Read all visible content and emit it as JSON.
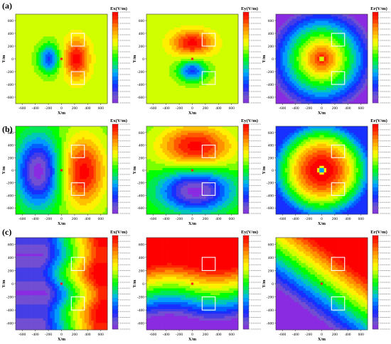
{
  "figure": {
    "row_labels": [
      "(a)",
      "(b)",
      "(c)"
    ]
  },
  "chart_data": [
    {
      "type": "heatmap",
      "row": "(a)",
      "col": 0,
      "field": "Ex",
      "cbar_title": "Ex(V/m)",
      "xlabel": "X/m",
      "ylabel": "Y/m",
      "xlim": [
        -700,
        700
      ],
      "ylim": [
        -700,
        700
      ],
      "xticks": [
        -600,
        -400,
        -200,
        0,
        200,
        400,
        600
      ],
      "yticks": [
        600,
        400,
        200,
        0,
        -200,
        -400,
        -600
      ],
      "source_point": {
        "x": 0,
        "y": 0,
        "color": "#ff2020"
      },
      "boxes": [
        {
          "x0": 150,
          "x1": 350,
          "y0": 200,
          "y1": 400
        },
        {
          "x0": 150,
          "x1": 350,
          "y0": -400,
          "y1": -200
        }
      ]
    },
    {
      "type": "heatmap",
      "row": "(a)",
      "col": 1,
      "field": "Ey",
      "cbar_title": "Ey(V/m)",
      "xlabel": "X/m",
      "ylabel": "Y/m",
      "xlim": [
        -700,
        700
      ],
      "ylim": [
        -700,
        700
      ],
      "xticks": [
        -600,
        -400,
        -200,
        0,
        200,
        400,
        600
      ],
      "yticks": [
        600,
        400,
        200,
        0,
        -200,
        -400,
        -600
      ],
      "source_point": {
        "x": 0,
        "y": 0,
        "color": "#ff2020"
      },
      "boxes": [
        {
          "x0": 150,
          "x1": 350,
          "y0": 200,
          "y1": 400
        },
        {
          "x0": 150,
          "x1": 350,
          "y0": -400,
          "y1": -200
        }
      ]
    },
    {
      "type": "heatmap",
      "row": "(a)",
      "col": 2,
      "field": "Er",
      "cbar_title": "Er(V/m)",
      "xlabel": "X/m",
      "ylabel": "Y/m",
      "xlim": [
        -700,
        700
      ],
      "ylim": [
        -700,
        700
      ],
      "xticks": [
        -600,
        -400,
        -200,
        0,
        200,
        400,
        600
      ],
      "yticks": [
        600,
        400,
        200,
        0,
        -200,
        -400,
        -600
      ],
      "source_point": null,
      "boxes": [
        {
          "x0": 150,
          "x1": 350,
          "y0": 200,
          "y1": 400
        },
        {
          "x0": 150,
          "x1": 350,
          "y0": -400,
          "y1": -200
        }
      ]
    },
    {
      "type": "heatmap",
      "row": "(b)",
      "col": 0,
      "field": "Ex",
      "cbar_title": "Ex(V/m)",
      "xlabel": "X/m",
      "ylabel": "Y/m",
      "xlim": [
        -700,
        700
      ],
      "ylim": [
        -700,
        700
      ],
      "xticks": [
        -600,
        -400,
        -200,
        0,
        200,
        400,
        600
      ],
      "yticks": [
        600,
        400,
        200,
        0,
        -200,
        -400,
        -600
      ],
      "source_point": {
        "x": 0,
        "y": 0,
        "color": "#ff2020"
      },
      "boxes": [
        {
          "x0": 150,
          "x1": 350,
          "y0": 200,
          "y1": 400
        },
        {
          "x0": 150,
          "x1": 350,
          "y0": -400,
          "y1": -200
        }
      ]
    },
    {
      "type": "heatmap",
      "row": "(b)",
      "col": 1,
      "field": "Ey",
      "cbar_title": "Ey(V/m)",
      "xlabel": "X/m",
      "ylabel": "Y/m",
      "xlim": [
        -700,
        700
      ],
      "ylim": [
        -700,
        700
      ],
      "xticks": [
        -600,
        -400,
        -200,
        0,
        200,
        400,
        600
      ],
      "yticks": [
        600,
        400,
        200,
        0,
        -200,
        -400,
        -600
      ],
      "source_point": {
        "x": 0,
        "y": 0,
        "color": "#ff2020"
      },
      "boxes": [
        {
          "x0": 150,
          "x1": 350,
          "y0": 200,
          "y1": 400
        },
        {
          "x0": 150,
          "x1": 350,
          "y0": -400,
          "y1": -200
        }
      ]
    },
    {
      "type": "heatmap",
      "row": "(b)",
      "col": 2,
      "field": "Er",
      "cbar_title": "Er(V/m)",
      "xlabel": "X/m",
      "ylabel": "Y/m",
      "xlim": [
        -700,
        700
      ],
      "ylim": [
        -700,
        700
      ],
      "xticks": [
        -600,
        -400,
        -200,
        0,
        200,
        400,
        600
      ],
      "yticks": [
        600,
        400,
        200,
        0,
        -200,
        -400,
        -600
      ],
      "source_point": null,
      "boxes": [
        {
          "x0": 150,
          "x1": 350,
          "y0": 200,
          "y1": 400
        },
        {
          "x0": 150,
          "x1": 350,
          "y0": -400,
          "y1": -200
        }
      ]
    },
    {
      "type": "heatmap",
      "row": "(c)",
      "col": 0,
      "field": "Ex",
      "cbar_title": "Ex(V/m)",
      "xlabel": "X/m",
      "ylabel": "Y/m",
      "xlim": [
        -700,
        700
      ],
      "ylim": [
        -700,
        700
      ],
      "xticks": [
        -600,
        -400,
        -200,
        0,
        200,
        400,
        600
      ],
      "yticks": [
        600,
        400,
        200,
        0,
        -200,
        -400,
        -600
      ],
      "source_point": {
        "x": 0,
        "y": 0,
        "color": "#ff2020"
      },
      "boxes": [
        {
          "x0": 150,
          "x1": 350,
          "y0": 200,
          "y1": 400
        },
        {
          "x0": 150,
          "x1": 350,
          "y0": -400,
          "y1": -200
        }
      ]
    },
    {
      "type": "heatmap",
      "row": "(c)",
      "col": 1,
      "field": "Ey",
      "cbar_title": "Ey(V/m)",
      "xlabel": "X/m",
      "ylabel": "Y/m",
      "xlim": [
        -700,
        700
      ],
      "ylim": [
        -700,
        700
      ],
      "xticks": [
        -600,
        -400,
        -200,
        0,
        200,
        400,
        600
      ],
      "yticks": [
        600,
        400,
        200,
        0,
        -200,
        -400,
        -600
      ],
      "source_point": {
        "x": 0,
        "y": 0,
        "color": "#ff2020"
      },
      "boxes": [
        {
          "x0": 150,
          "x1": 350,
          "y0": 200,
          "y1": 400
        },
        {
          "x0": 150,
          "x1": 350,
          "y0": -400,
          "y1": -200
        }
      ]
    },
    {
      "type": "heatmap",
      "row": "(c)",
      "col": 2,
      "field": "Er",
      "cbar_title": "Er(V/m)",
      "xlabel": "X/m",
      "ylabel": "Y/m",
      "xlim": [
        -700,
        700
      ],
      "ylim": [
        -700,
        700
      ],
      "xticks": [
        -600,
        -400,
        -200,
        0,
        200,
        400,
        600
      ],
      "yticks": [
        600,
        400,
        200,
        0,
        -200,
        -400,
        -600
      ],
      "source_point": {
        "x": 0,
        "y": 0,
        "color": "#ff2020"
      },
      "boxes": [
        {
          "x0": 150,
          "x1": 350,
          "y0": 200,
          "y1": 400
        },
        {
          "x0": 150,
          "x1": 350,
          "y0": -400,
          "y1": -200
        }
      ]
    }
  ],
  "colormap": [
    "#8a2be2",
    "#6a5acd",
    "#2020ff",
    "#0060ff",
    "#00b0ff",
    "#00e070",
    "#00ff00",
    "#a0ff00",
    "#ffff00",
    "#ffc000",
    "#ff8000",
    "#ff3000",
    "#ff0000"
  ]
}
